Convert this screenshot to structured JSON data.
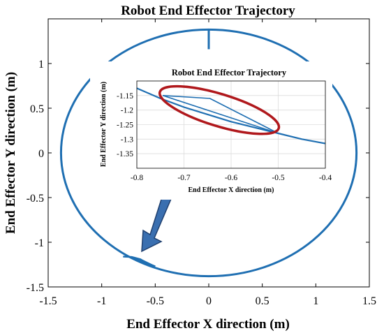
{
  "chart_data": [
    {
      "type": "line",
      "title": "Robot End Effector Trajectory",
      "xlabel": "End Effector X direction (m)",
      "ylabel": "End Effector Y direction (m)",
      "xlim": [
        -1.5,
        1.5
      ],
      "ylim": [
        -1.5,
        1.5
      ],
      "xticks": [
        "-1.5",
        "-1",
        "-0.5",
        "0",
        "0.5",
        "1",
        "1.5"
      ],
      "yticks": [
        "-1.5",
        "-1",
        "-0.5",
        "0",
        "0.5",
        "1"
      ],
      "grid": false,
      "colors": {
        "trajectory": "#1f6fb2",
        "arrow": "#3a6fb0",
        "arrow_edge": "#1f3f6e"
      },
      "series": [
        {
          "name": "",
          "shape": "ellipse",
          "center": [
            0,
            0
          ],
          "semi_axes": [
            1.38,
            1.38
          ],
          "x": [
            0,
            0
          ],
          "y": [
            1.38,
            1.16
          ]
        },
        {
          "name": "",
          "x": [
            -0.8,
            -0.72,
            -0.64,
            -0.57,
            -0.5
          ],
          "y": [
            -1.16,
            -1.165,
            -1.19,
            -1.24,
            -1.27
          ]
        }
      ]
    },
    {
      "type": "line",
      "title": "Robot End Effector Trajectory",
      "xlabel": "End Effector X direction (m)",
      "ylabel": "End Effector Y direction (m)",
      "xlim": [
        -0.8,
        -0.4
      ],
      "ylim": [
        -1.4,
        -1.1
      ],
      "xticks": [
        "-0.8",
        "-0.7",
        "-0.6",
        "-0.5",
        "-0.4"
      ],
      "yticks": [
        "-1.15",
        "-1.2",
        "-1.25",
        "-1.3",
        "-1.35"
      ],
      "grid": true,
      "colors": {
        "trajectory": "#1f6fb2",
        "highlight": "#b0181c"
      },
      "series": [
        {
          "name": "",
          "x": [
            -0.8,
            -0.75,
            -0.7,
            -0.65,
            -0.6,
            -0.55,
            -0.5,
            -0.45,
            -0.4
          ],
          "y": [
            -1.125,
            -1.16,
            -1.19,
            -1.215,
            -1.24,
            -1.26,
            -1.28,
            -1.3,
            -1.315
          ]
        },
        {
          "name": "",
          "x": [
            -0.745,
            -0.645,
            -0.5
          ],
          "y": [
            -1.15,
            -1.16,
            -1.28
          ]
        },
        {
          "name": "",
          "x": [
            -0.745,
            -0.5
          ],
          "y": [
            -1.15,
            -1.28
          ]
        }
      ],
      "highlight": {
        "shape": "ellipse",
        "center_x": -0.625,
        "center_y": -1.2,
        "label": ""
      }
    }
  ]
}
